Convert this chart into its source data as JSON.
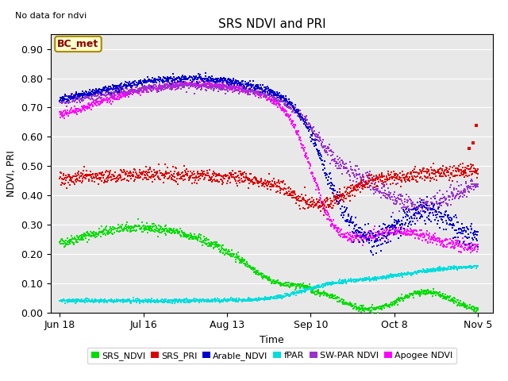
{
  "title": "SRS NDVI and PRI",
  "no_data_text": "No data for ndvi",
  "ylabel": "NDVI, PRI",
  "xlabel": "Time",
  "annotation": "BC_met",
  "ylim": [
    0.0,
    0.95
  ],
  "yticks": [
    0.0,
    0.1,
    0.2,
    0.3,
    0.4,
    0.5,
    0.6,
    0.7,
    0.8,
    0.9
  ],
  "xtick_labels": [
    "Jun 18",
    "Jul 16",
    "Aug 13",
    "Sep 10",
    "Oct 8",
    "Nov 5"
  ],
  "xtick_pos": [
    0,
    28,
    56,
    84,
    112,
    140
  ],
  "colors": {
    "SRS_NDVI": "#00dd00",
    "SRS_PRI": "#dd0000",
    "Arable_NDVI": "#0000cc",
    "fPAR": "#00dddd",
    "SW_PAR_NDVI": "#9933cc",
    "Apogee_NDVI": "#ff00ff"
  },
  "bg_color": "#e8e8e8",
  "fig_color": "#ffffff",
  "title_fontsize": 11,
  "label_fontsize": 9,
  "tick_fontsize": 9
}
